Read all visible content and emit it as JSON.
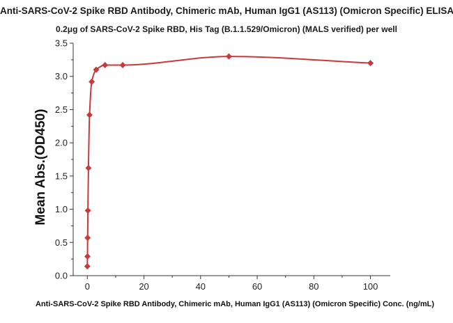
{
  "chart_data": {
    "type": "scatter",
    "title": "Anti-SARS-CoV-2 Spike RBD Antibody, Chimeric mAb, Human IgG1 (AS113) (Omicron Specific) ELISA",
    "subtitle": "0.2μg of SARS-CoV-2 Spike RBD, His Tag (B.1.1.529/Omicron) (MALS verified) per well",
    "xlabel": "Anti-SARS-CoV-2 Spike RBD Antibody, Chimeric mAb, Human IgG1 (AS113) (Omicron Specific) Conc. (ng/mL)",
    "ylabel": "Mean Abs.(OD450)",
    "xlim": [
      -5,
      107
    ],
    "ylim": [
      0.0,
      3.5
    ],
    "xticks": [
      "0",
      "20",
      "40",
      "60",
      "80",
      "100"
    ],
    "yticks": [
      "0.0",
      "0.5",
      "1.0",
      "1.5",
      "2.0",
      "2.5",
      "3.0",
      "3.5"
    ],
    "grid": false,
    "series_color": "#c8393b",
    "marker": "diamond",
    "fit_curve": true,
    "series": [
      {
        "x": [
          0.0,
          0.05,
          0.1,
          0.2,
          0.39,
          0.78,
          1.56,
          3.13,
          6.25,
          12.5,
          50,
          100
        ],
        "y": [
          0.14,
          0.29,
          0.57,
          0.98,
          1.62,
          2.42,
          2.92,
          3.1,
          3.17,
          3.17,
          3.3,
          3.2
        ]
      }
    ]
  }
}
